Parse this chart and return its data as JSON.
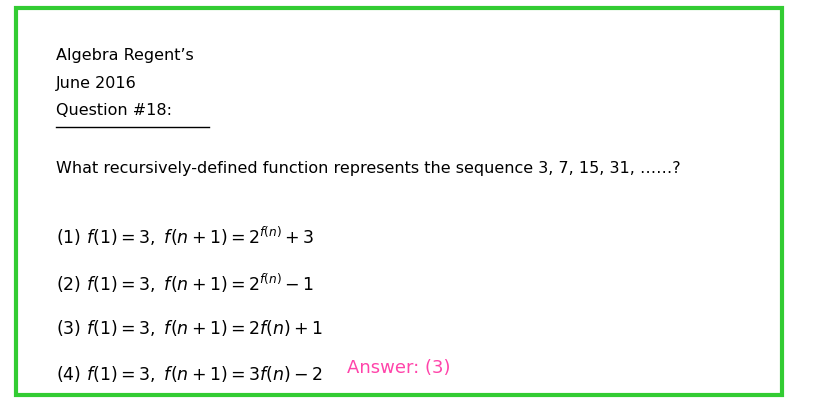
{
  "background_color": "#ffffff",
  "border_color": "#33cc33",
  "border_linewidth": 3,
  "title_line1": "Algebra Regent’s",
  "title_line2": "June 2016",
  "title_line3": "Question #18:",
  "question_text": "What recursively-defined function represents the sequence 3, 7, 15, 31, ……?",
  "answer_text": "Answer: (3)",
  "answer_color": "#ff44aa",
  "figsize": [
    8.27,
    4.03
  ],
  "dpi": 100
}
